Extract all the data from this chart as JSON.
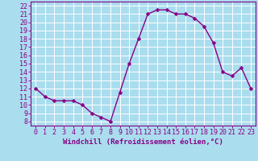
{
  "x": [
    0,
    1,
    2,
    3,
    4,
    5,
    6,
    7,
    8,
    9,
    10,
    11,
    12,
    13,
    14,
    15,
    16,
    17,
    18,
    19,
    20,
    21,
    22,
    23
  ],
  "y": [
    12,
    11,
    10.5,
    10.5,
    10.5,
    10,
    9,
    8.5,
    8,
    11.5,
    15,
    18,
    21,
    21.5,
    21.5,
    21,
    21,
    20.5,
    19.5,
    17.5,
    14,
    13.5,
    14.5,
    12
  ],
  "line_color": "#880088",
  "marker": "D",
  "marker_size": 2.5,
  "line_width": 1.0,
  "background_color": "#aaddee",
  "plot_bg_color": "#aaddee",
  "grid_color": "#ffffff",
  "xlabel": "Windchill (Refroidissement éolien,°C)",
  "xlabel_fontsize": 6.5,
  "yticks": [
    8,
    9,
    10,
    11,
    12,
    13,
    14,
    15,
    16,
    17,
    18,
    19,
    20,
    21,
    22
  ],
  "xticks": [
    0,
    1,
    2,
    3,
    4,
    5,
    6,
    7,
    8,
    9,
    10,
    11,
    12,
    13,
    14,
    15,
    16,
    17,
    18,
    19,
    20,
    21,
    22,
    23
  ],
  "xlim": [
    -0.5,
    23.5
  ],
  "ylim": [
    7.5,
    22.5
  ],
  "tick_fontsize": 6.0
}
